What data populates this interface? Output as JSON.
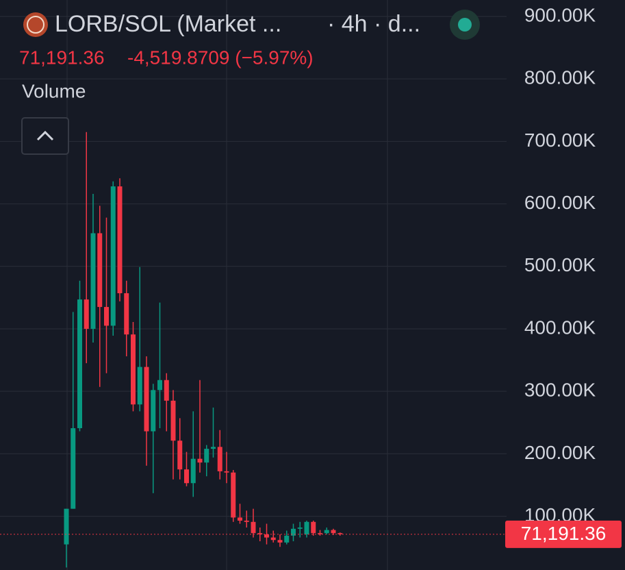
{
  "header": {
    "symbol": "LORB/SOL (Market ...",
    "interval": "· 4h · d...",
    "change": "-4,519.8709 (−5.97%)",
    "indicator": "Volume"
  },
  "chart_data": {
    "type": "candlestick",
    "up_color": "#089981",
    "down_color": "#f23645",
    "ylim": [
      14000,
      926300
    ],
    "yticks": [
      {
        "value": 100000,
        "label": "100.00K"
      },
      {
        "value": 200000,
        "label": "200.00K"
      },
      {
        "value": 300000,
        "label": "300.00K"
      },
      {
        "value": 400000,
        "label": "400.00K"
      },
      {
        "value": 500000,
        "label": "500.00K"
      },
      {
        "value": 600000,
        "label": "600.00K"
      },
      {
        "value": 700000,
        "label": "700.00K"
      },
      {
        "value": 800000,
        "label": "800.00K"
      },
      {
        "value": 900000,
        "label": "900.00K"
      }
    ],
    "grid": true,
    "last_price": {
      "value": 71191.36,
      "label": "71,191.36"
    },
    "open": [
      55000,
      112000,
      241000,
      447000,
      400000,
      553000,
      435000,
      405000,
      628000,
      457000,
      391000,
      279000,
      339000,
      236000,
      302000,
      318000,
      285000,
      221000,
      175000,
      153000,
      192000,
      186000,
      208000,
      211000,
      172000,
      170000,
      98000,
      93000,
      91000,
      73000,
      71000,
      66000,
      62000,
      58000,
      69000,
      80000,
      71000,
      91000,
      73000,
      73000,
      78000,
      73000
    ],
    "high": [
      112000,
      427000,
      477000,
      715000,
      616000,
      597000,
      578000,
      636000,
      641000,
      477000,
      411000,
      499000,
      356000,
      312000,
      442000,
      329000,
      302000,
      257000,
      203000,
      268000,
      318000,
      214000,
      274000,
      238000,
      203000,
      174000,
      120000,
      109000,
      112000,
      82000,
      88000,
      77000,
      71000,
      77000,
      88000,
      91000,
      93000,
      93000,
      78000,
      82000,
      80000,
      74000
    ],
    "low": [
      18000,
      112000,
      236000,
      345000,
      378000,
      307000,
      329000,
      389000,
      444000,
      356000,
      268000,
      268000,
      181000,
      137000,
      241000,
      236000,
      159000,
      159000,
      148000,
      131000,
      170000,
      164000,
      194000,
      159000,
      153000,
      91000,
      88000,
      82000,
      66000,
      60000,
      55000,
      58000,
      51000,
      55000,
      60000,
      66000,
      66000,
      69000,
      69000,
      71000,
      70000,
      69000
    ],
    "close": [
      112000,
      241000,
      447000,
      400000,
      553000,
      435000,
      405000,
      628000,
      457000,
      391000,
      279000,
      339000,
      236000,
      302000,
      318000,
      285000,
      221000,
      175000,
      153000,
      192000,
      186000,
      208000,
      211000,
      172000,
      170000,
      98000,
      93000,
      91000,
      73000,
      71000,
      66000,
      62000,
      58000,
      69000,
      80000,
      82000,
      91000,
      73000,
      72000,
      78000,
      73000,
      71191.36
    ]
  }
}
